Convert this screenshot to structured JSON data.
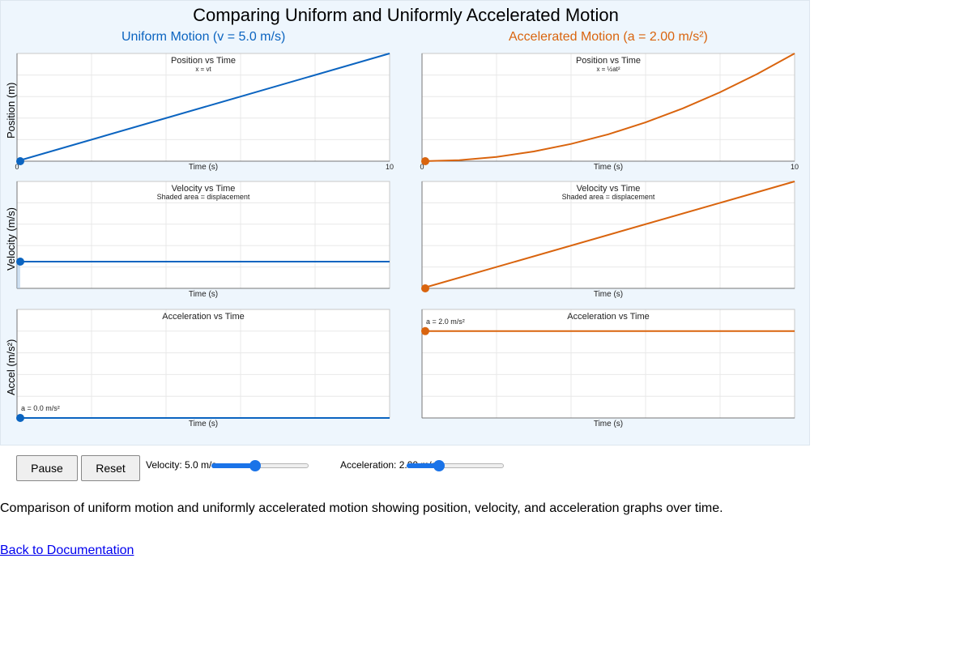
{
  "title": "Comparing Uniform and Uniformly Accelerated Motion",
  "left_header": "Uniform Motion (v = 5.0 m/s)",
  "right_header": "Accelerated Motion (a = 2.00 m/s²)",
  "y_labels": {
    "position": "Position (m)",
    "velocity": "Velocity (m/s)",
    "accel": "Accel (m/s²)"
  },
  "x_axis_label": "Time (s)",
  "colors": {
    "uniform": "#0b64c0",
    "accelerated": "#d9640e",
    "panel_bg": "#eef6fd",
    "area_fill": "#aecbe9"
  },
  "chart_data": [
    {
      "type": "line",
      "title": "Position vs Time",
      "subtitle": "x = vt",
      "xlabel": "Time (s)",
      "xlim": [
        0,
        10
      ],
      "x_tick_labels": [
        "0",
        "10"
      ],
      "grid": true,
      "series": [
        {
          "x": [
            0,
            10
          ],
          "y": [
            0,
            50
          ]
        }
      ],
      "current_marker": {
        "t": 0,
        "value": 0
      }
    },
    {
      "type": "line",
      "title": "Position vs Time",
      "subtitle": "x = ½at²",
      "xlabel": "Time (s)",
      "xlim": [
        0,
        10
      ],
      "x_tick_labels": [
        "0",
        "10"
      ],
      "grid": true,
      "series": [
        {
          "x": [
            0,
            1,
            2,
            3,
            4,
            5,
            6,
            7,
            8,
            9,
            10
          ],
          "y": [
            0,
            1,
            4,
            9,
            16,
            25,
            36,
            49,
            64,
            81,
            100
          ]
        }
      ],
      "current_marker": {
        "t": 0,
        "value": 0
      }
    },
    {
      "type": "area",
      "title": "Velocity vs Time",
      "subtitle": "Shaded area = displacement",
      "xlabel": "Time (s)",
      "xlim": [
        0,
        10
      ],
      "grid": true,
      "series": [
        {
          "x": [
            0,
            10
          ],
          "y": [
            5,
            5
          ]
        }
      ],
      "current_marker": {
        "t": 0,
        "value": 5
      }
    },
    {
      "type": "area",
      "title": "Velocity vs Time",
      "subtitle": "Shaded area = displacement",
      "xlabel": "Time (s)",
      "xlim": [
        0,
        10
      ],
      "grid": true,
      "series": [
        {
          "x": [
            0,
            10
          ],
          "y": [
            0,
            20
          ]
        }
      ],
      "current_marker": {
        "t": 0,
        "value": 0
      }
    },
    {
      "type": "line",
      "title": "Acceleration vs Time",
      "xlabel": "Time (s)",
      "xlim": [
        0,
        10
      ],
      "grid": true,
      "series": [
        {
          "x": [
            0,
            10
          ],
          "y": [
            0,
            0
          ]
        }
      ],
      "current_marker": {
        "t": 0,
        "value": 0
      },
      "annotation": "a = 0.0 m/s²"
    },
    {
      "type": "line",
      "title": "Acceleration vs Time",
      "xlabel": "Time (s)",
      "xlim": [
        0,
        10
      ],
      "grid": true,
      "series": [
        {
          "x": [
            0,
            10
          ],
          "y": [
            2,
            2
          ]
        }
      ],
      "current_marker": {
        "t": 0,
        "value": 2
      },
      "annotation": "a = 2.0 m/s²"
    }
  ],
  "controls": {
    "pause_label": "Pause",
    "reset_label": "Reset",
    "velocity_label": "Velocity: 5.0 m/s",
    "velocity_fraction": 0.45,
    "acceleration_label": "Acceleration: 2.00 m/s²",
    "acceleration_fraction": 0.33
  },
  "caption": "Comparison of uniform motion and uniformly accelerated motion showing position, velocity, and acceleration graphs over time.",
  "back_link": "Back to Documentation"
}
